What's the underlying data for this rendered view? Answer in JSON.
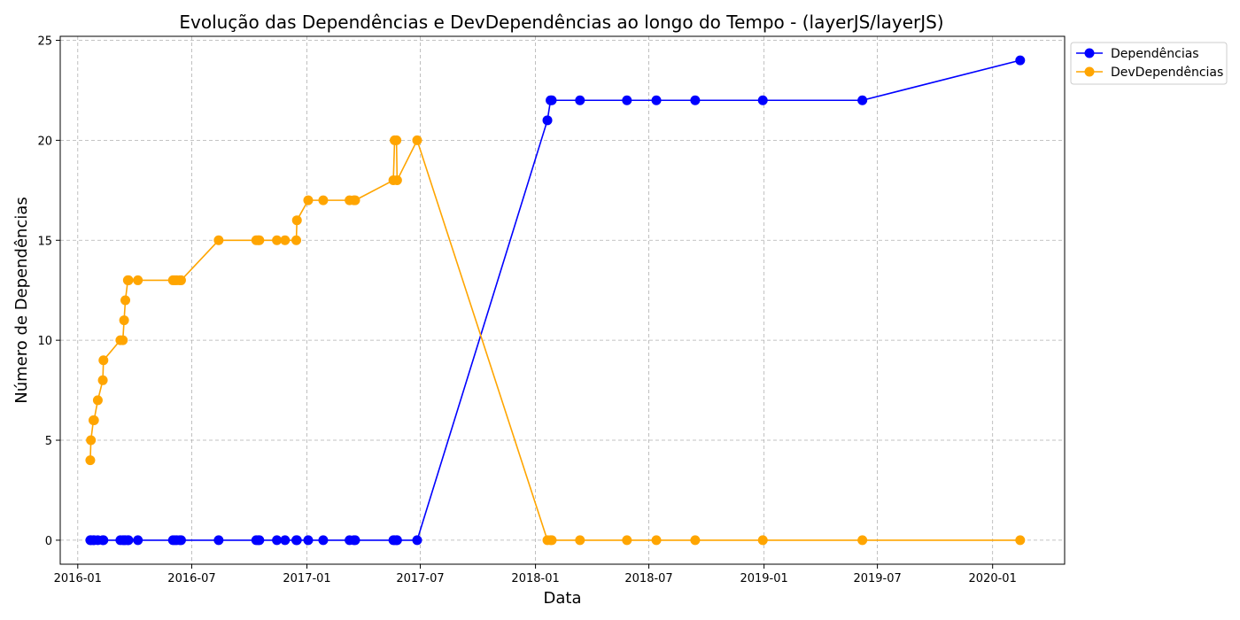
{
  "chart_data": {
    "type": "line",
    "title": "Evolução das Dependências e DevDependências ao longo do Tempo - (layerJS/layerJS)",
    "xlabel": "Data",
    "ylabel": "Número de Dependências",
    "x_tick_labels": [
      "2016-01",
      "2016-07",
      "2017-01",
      "2017-07",
      "2018-01",
      "2018-07",
      "2019-01",
      "2019-07",
      "2020-01"
    ],
    "y_ticks": [
      0,
      5,
      10,
      15,
      20,
      25
    ],
    "xlim": [
      "2015-12-04",
      "2020-04-25"
    ],
    "ylim": [
      -1.2,
      25.2
    ],
    "grid": true,
    "legend_position": "top-right",
    "x": [
      "2016-01-21",
      "2016-01-22",
      "2016-01-26",
      "2016-01-27",
      "2016-02-02",
      "2016-02-10",
      "2016-02-11",
      "2016-03-09",
      "2016-03-13",
      "2016-03-15",
      "2016-03-17",
      "2016-03-21",
      "2016-03-22",
      "2016-04-06",
      "2016-06-01",
      "2016-06-04",
      "2016-06-07",
      "2016-06-12",
      "2016-06-14",
      "2016-08-13",
      "2016-10-12",
      "2016-10-15",
      "2016-10-17",
      "2016-11-14",
      "2016-11-27",
      "2016-12-15",
      "2016-12-16",
      "2017-01-03",
      "2017-01-27",
      "2017-03-10",
      "2017-03-17",
      "2017-03-19",
      "2017-05-19",
      "2017-05-21",
      "2017-05-24",
      "2017-05-25",
      "2017-06-26",
      "2018-01-20",
      "2018-01-25",
      "2018-01-27",
      "2018-03-13",
      "2018-05-27",
      "2018-07-13",
      "2018-09-13",
      "2018-12-30",
      "2019-06-07",
      "2020-02-14"
    ],
    "series": [
      {
        "name": "Dependências",
        "color": "#0000ff",
        "values": [
          0,
          0,
          0,
          0,
          0,
          0,
          0,
          0,
          0,
          0,
          0,
          0,
          0,
          0,
          0,
          0,
          0,
          0,
          0,
          0,
          0,
          0,
          0,
          0,
          0,
          0,
          0,
          0,
          0,
          0,
          0,
          0,
          0,
          0,
          0,
          0,
          0,
          21,
          22,
          22,
          22,
          22,
          22,
          22,
          22,
          22,
          24
        ]
      },
      {
        "name": "DevDependências",
        "color": "#ffa500",
        "values": [
          4,
          5,
          6,
          6,
          7,
          8,
          9,
          10,
          10,
          11,
          12,
          13,
          13,
          13,
          13,
          13,
          13,
          13,
          13,
          15,
          15,
          15,
          15,
          15,
          15,
          15,
          16,
          17,
          17,
          17,
          17,
          17,
          18,
          20,
          20,
          18,
          20,
          0,
          0,
          0,
          0,
          0,
          0,
          0,
          0,
          0,
          0
        ]
      }
    ]
  }
}
